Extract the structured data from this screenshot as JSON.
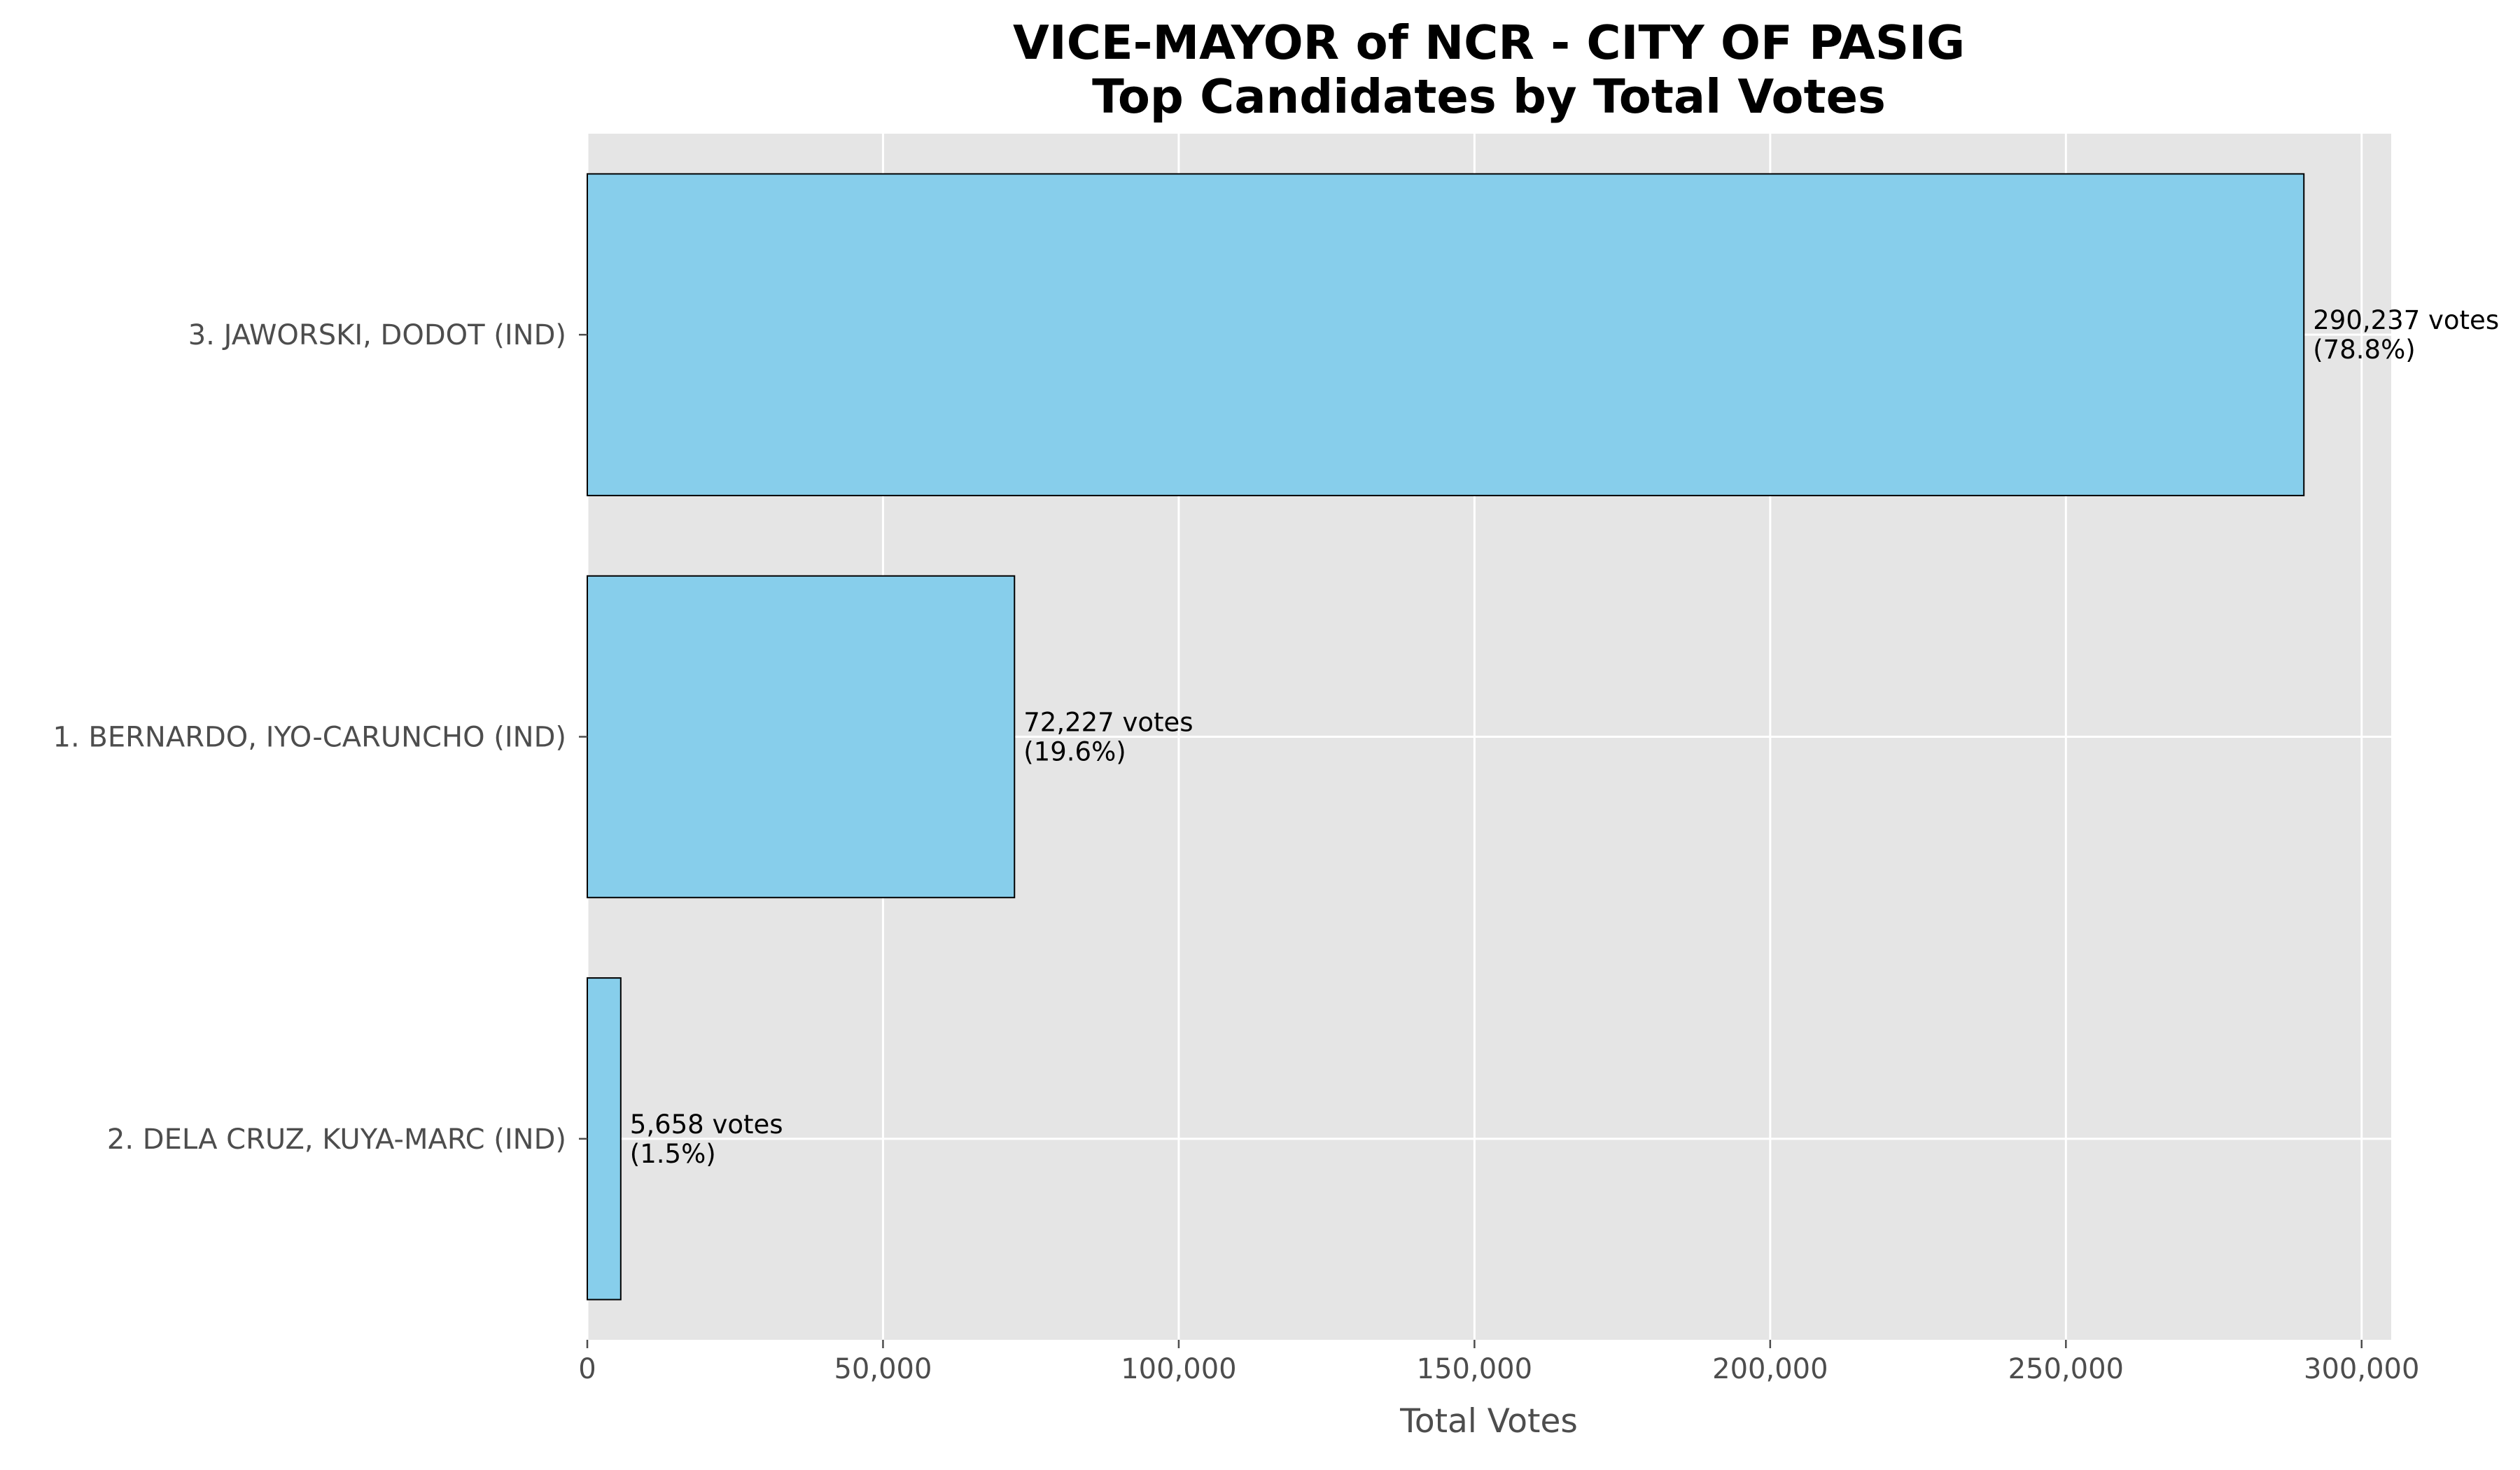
{
  "chart_data": {
    "type": "bar",
    "orientation": "horizontal",
    "title": "VICE-MAYOR of NCR - CITY OF PASIG",
    "subtitle": "Top Candidates by Total Votes",
    "xlabel": "Total Votes",
    "ylabel": "",
    "xlim": [
      0,
      305000
    ],
    "xticks": [
      0,
      50000,
      100000,
      150000,
      200000,
      250000,
      300000
    ],
    "xtick_labels": [
      "0",
      "50,000",
      "100,000",
      "150,000",
      "200,000",
      "250,000",
      "300,000"
    ],
    "grid": true,
    "categories": [
      "3. JAWORSKI, DODOT (IND)",
      "1. BERNARDO, IYO-CARUNCHO (IND)",
      "2. DELA CRUZ, KUYA-MARC (IND)"
    ],
    "values": [
      290237,
      72227,
      5658
    ],
    "data_labels": [
      [
        "290,237 votes",
        "(78.8%)"
      ],
      [
        "72,227 votes",
        "(19.6%)"
      ],
      [
        "5,658 votes",
        "(1.5%)"
      ]
    ],
    "colors": {
      "bar_fill": "#87CEEB",
      "bar_edge": "#000000",
      "plot_background": "#E5E5E5",
      "grid": "#FFFFFF"
    }
  }
}
